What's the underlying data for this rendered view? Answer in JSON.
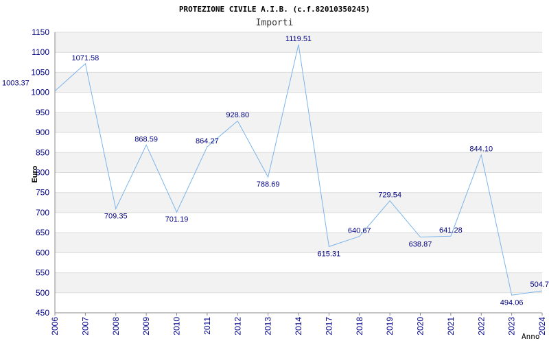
{
  "chart_data": {
    "type": "line",
    "title": "PROTEZIONE CIVILE A.I.B. (c.f.82010350245)",
    "subtitle": "Importi",
    "xlabel": "Anno",
    "ylabel": "Euro",
    "ylim": [
      450,
      1150
    ],
    "yticks": [
      "450",
      "500",
      "550",
      "600",
      "650",
      "700",
      "750",
      "800",
      "850",
      "900",
      "950",
      "1000",
      "1050",
      "1100",
      "1150"
    ],
    "categories": [
      "2006",
      "2007",
      "2008",
      "2009",
      "2010",
      "2011",
      "2012",
      "2013",
      "2014",
      "2017",
      "2018",
      "2019",
      "2020",
      "2021",
      "2022",
      "2023",
      "2024"
    ],
    "values": [
      1003.37,
      1071.58,
      709.35,
      868.59,
      701.19,
      864.27,
      928.8,
      788.69,
      1119.51,
      615.31,
      640.67,
      729.54,
      638.87,
      641.28,
      844.1,
      494.06,
      504.7
    ],
    "labels": [
      "1003.37",
      "1071.58",
      "709.35",
      "868.59",
      "701.19",
      "864.27",
      "928.80",
      "788.69",
      "1119.51",
      "615.31",
      "640.67",
      "729.54",
      "638.87",
      "641.28",
      "844.10",
      "494.06",
      "504.7"
    ],
    "grid": true,
    "band_colors": [
      "#ffffff",
      "#f2f2f2"
    ],
    "line_color": "#7ab4ea",
    "tick_color": "#00008b",
    "label_color": "#000080"
  }
}
